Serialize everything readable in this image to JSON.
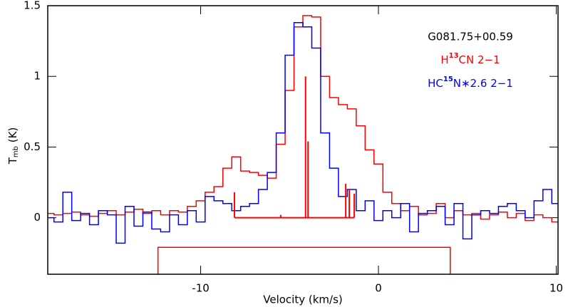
{
  "chart_data": {
    "type": "step",
    "title": "G081.75+00.59",
    "x_label": "Velocity (km/s)",
    "y_label": [
      "T",
      "mb",
      " (K)"
    ],
    "xlim": [
      -18.6,
      10.1
    ],
    "ylim": [
      -0.4,
      1.5
    ],
    "xticks": [
      -10,
      0,
      10
    ],
    "yticks": [
      0,
      0.5,
      1,
      1.5
    ],
    "x": [
      -18.5,
      -18,
      -17.5,
      -17,
      -16.5,
      -16,
      -15.5,
      -15,
      -14.5,
      -14,
      -13.5,
      -13,
      -12.5,
      -12,
      -11.5,
      -11,
      -10.5,
      -10,
      -9.5,
      -9,
      -8.5,
      -8,
      -7.5,
      -7,
      -6.5,
      -6,
      -5.5,
      -5,
      -4.5,
      -4,
      -3.5,
      -3,
      -2.5,
      -2,
      -1.5,
      -1,
      -0.5,
      0,
      0.5,
      1,
      1.5,
      2,
      2.5,
      3,
      3.5,
      4,
      4.5,
      5,
      5.5,
      6,
      6.5,
      7,
      7.5,
      8,
      8.5,
      9,
      9.5,
      10
    ],
    "series": [
      {
        "name": [
          "H",
          "13",
          "CN 2−1"
        ],
        "color": "#ff0000",
        "values": [
          0.03,
          0.02,
          0.03,
          0.04,
          0.02,
          0.01,
          0.03,
          0.05,
          0.02,
          0.04,
          0.06,
          0.03,
          0.05,
          0.02,
          0.05,
          0.04,
          0.08,
          0.12,
          0.18,
          0.22,
          0.35,
          0.43,
          0.33,
          0.32,
          0.3,
          0.28,
          0.52,
          0.9,
          1.35,
          1.43,
          1.42,
          1.0,
          0.85,
          0.8,
          0.77,
          0.65,
          0.48,
          0.38,
          0.18,
          0.1,
          0.05,
          0.08,
          0.02,
          0.03,
          0.1,
          0.0,
          0.05,
          0.02,
          0.03,
          -0.01,
          0.02,
          0.04,
          0.0,
          0.03,
          -0.02,
          0.02,
          0.0,
          -0.03
        ]
      },
      {
        "name": [
          "HC",
          "15",
          "N∗2.6  2−1"
        ],
        "color": "#0000ff",
        "values": [
          0.0,
          -0.03,
          0.18,
          -0.02,
          0.03,
          -0.05,
          0.05,
          0.02,
          -0.18,
          0.08,
          -0.06,
          0.04,
          -0.08,
          -0.1,
          0.02,
          -0.05,
          0.05,
          -0.03,
          0.15,
          0.12,
          0.1,
          0.05,
          0.08,
          0.1,
          0.2,
          0.32,
          0.6,
          1.15,
          1.38,
          1.35,
          1.2,
          0.6,
          0.35,
          0.15,
          0.2,
          0.05,
          0.12,
          -0.02,
          0.05,
          0.0,
          0.1,
          -0.1,
          0.03,
          0.05,
          0.08,
          -0.05,
          0.1,
          -0.15,
          0.02,
          0.05,
          0.03,
          0.08,
          0.1,
          0.05,
          0.0,
          0.12,
          0.2,
          0.1
        ]
      }
    ],
    "hyperfine": {
      "color": "#ff0000",
      "x": [
        -8.1,
        -5.5,
        -4.1,
        -3.96,
        -1.84,
        -1.64,
        -1.36
      ],
      "values": [
        0.18,
        0.02,
        1.0,
        0.54,
        0.24,
        0.2,
        0.17
      ]
    },
    "range_marker": {
      "color": "#ff0000",
      "x": [
        -12.4,
        4.04
      ],
      "y": -0.21
    }
  }
}
